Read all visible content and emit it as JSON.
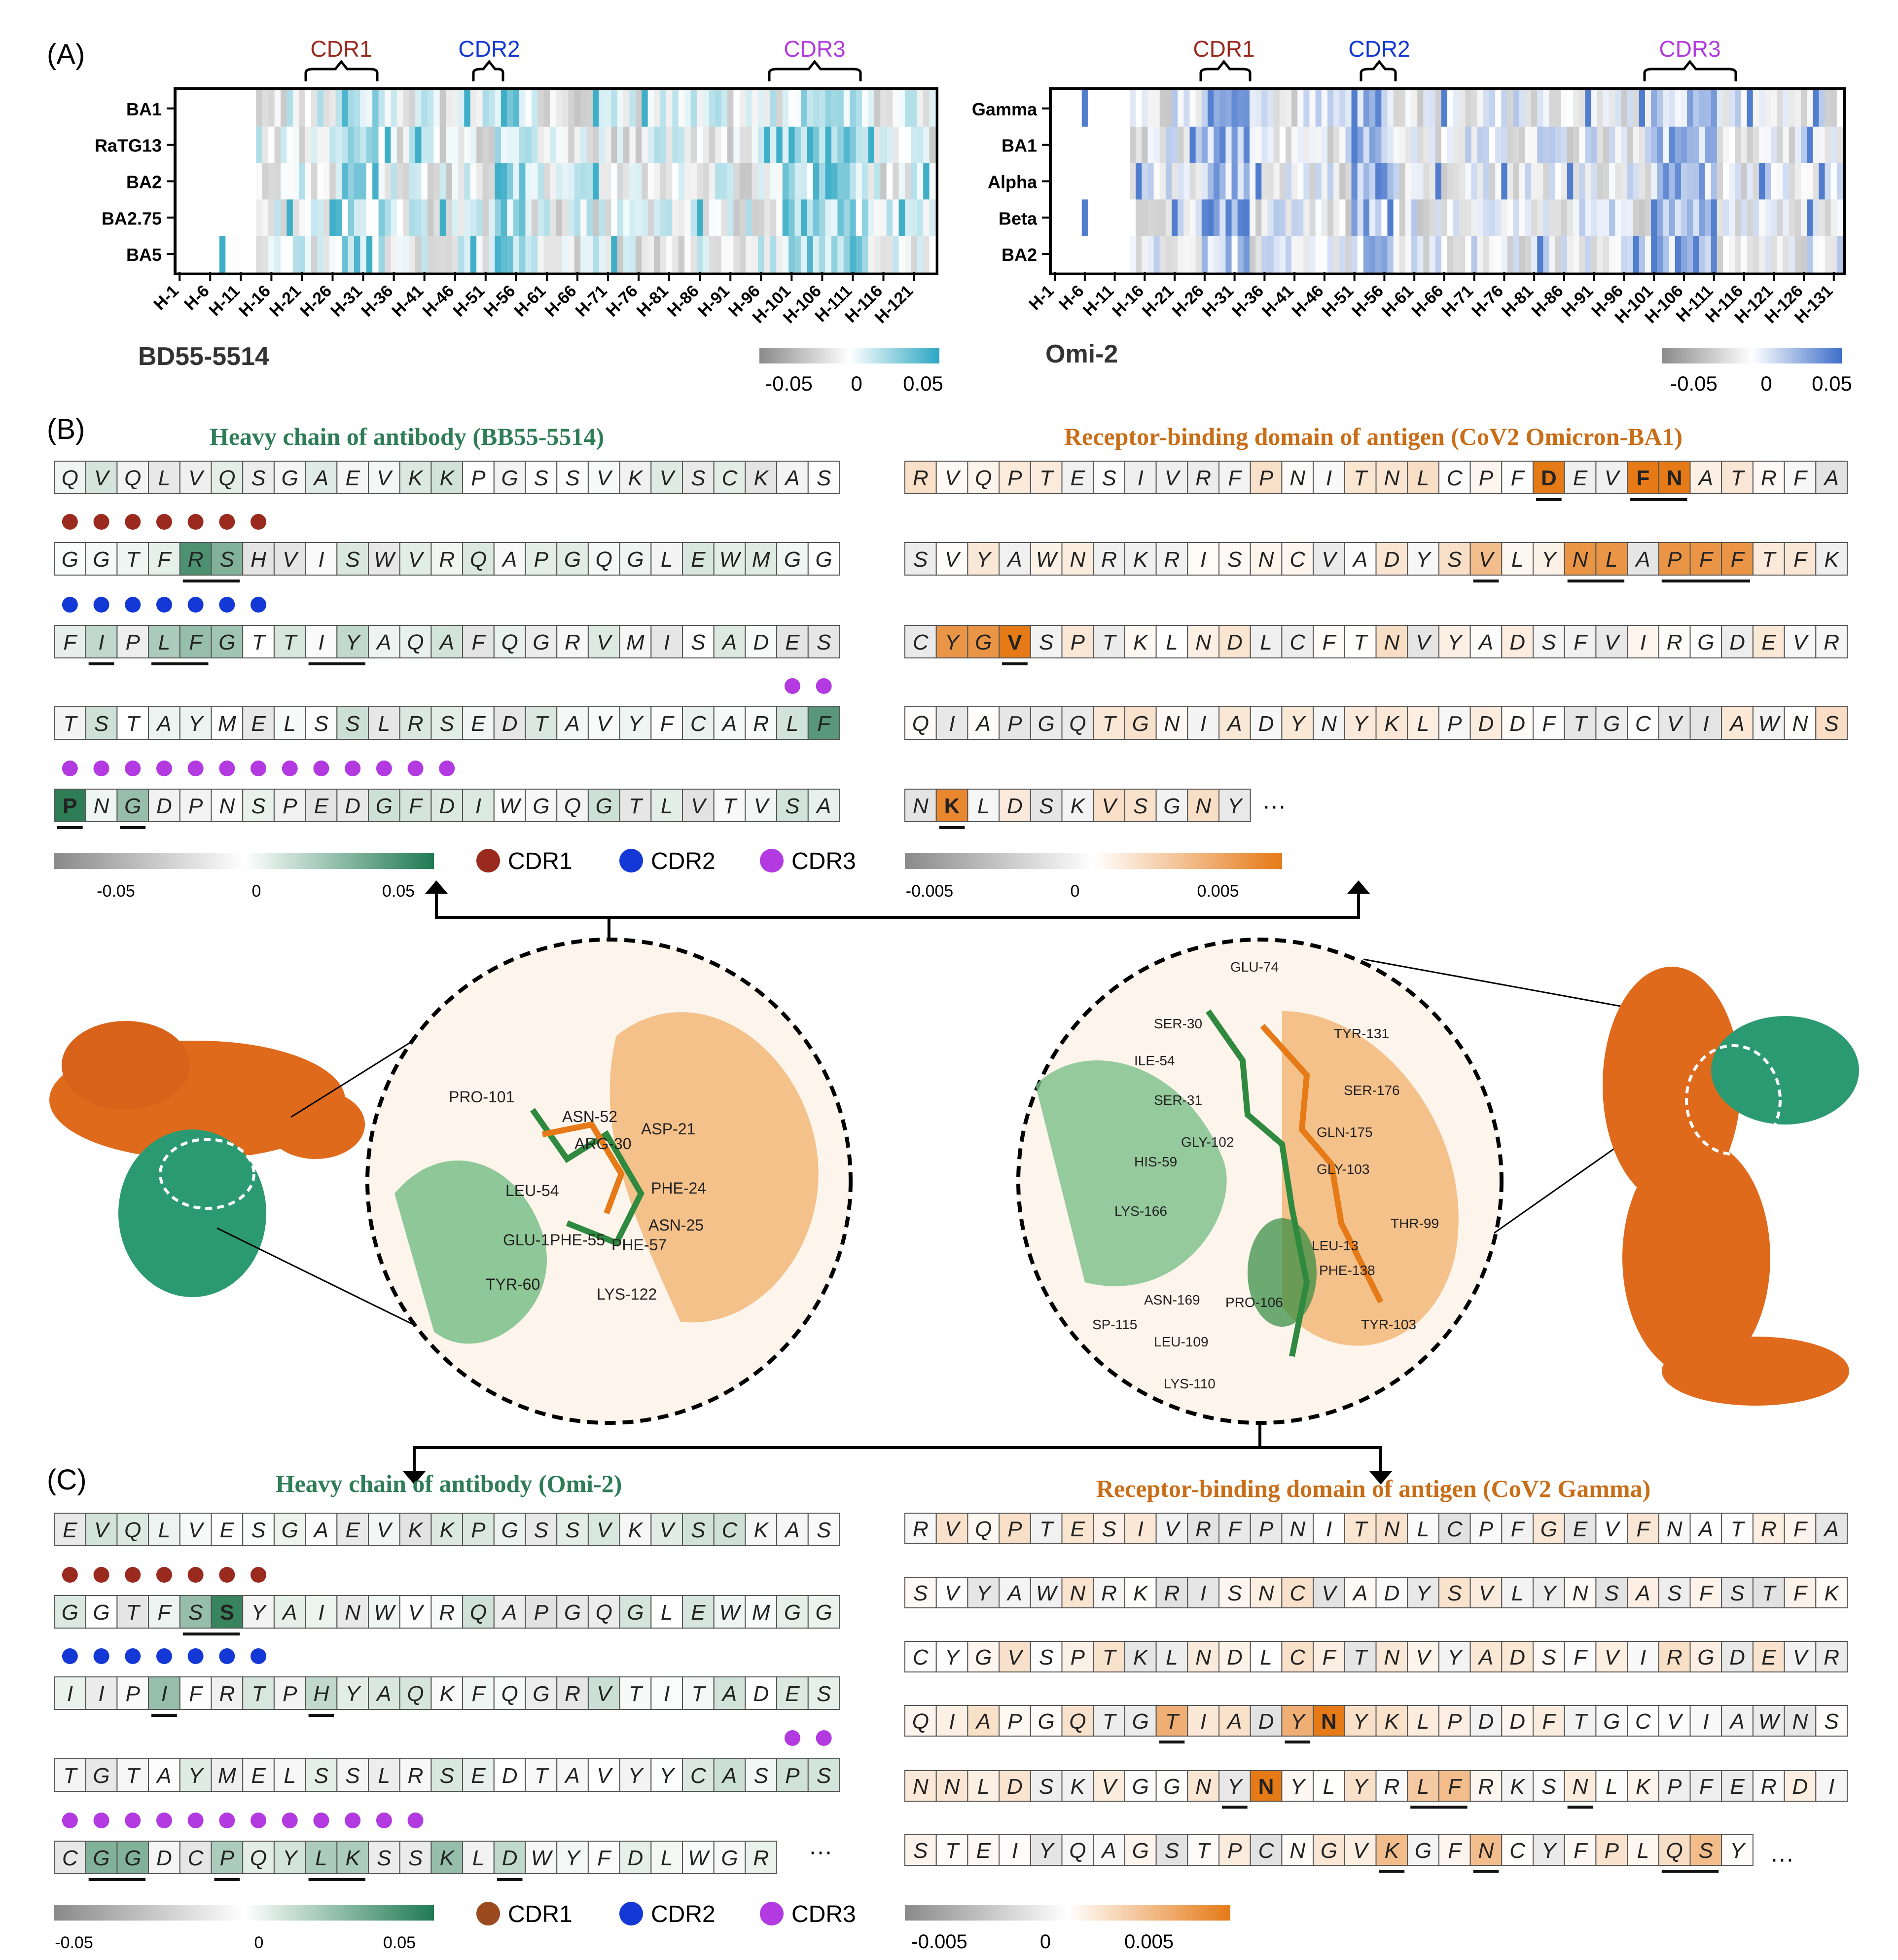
{
  "panels": {
    "A": "(A)",
    "B": "(B)",
    "C": "(C)"
  },
  "colors": {
    "teal": "#2aa6c2",
    "blue": "#3e6fc9",
    "green": "#2e7d57",
    "orange": "#e57a17",
    "gray": "#888888",
    "cdr1": "#9a2a1e",
    "cdr2": "#1338d6",
    "cdr3": "#b23ae0"
  },
  "panelA": {
    "left": {
      "antibody": "BD55-5514",
      "rows": [
        "BA1",
        "RaTG13",
        "BA2",
        "BA2.75",
        "BA5"
      ],
      "xticks": [
        "H-1",
        "H-6",
        "H-11",
        "H-16",
        "H-21",
        "H-26",
        "H-31",
        "H-36",
        "H-41",
        "H-46",
        "H-51",
        "H-56",
        "H-61",
        "H-66",
        "H-71",
        "H-76",
        "H-81",
        "H-86",
        "H-91",
        "H-96",
        "H-101",
        "H-106",
        "H-111",
        "H-116",
        "H-121"
      ],
      "cdr_labels": [
        "CDR1",
        "CDR2",
        "CDR3"
      ],
      "colorbar": [
        "-0.05",
        "0",
        "0.05"
      ],
      "n_cols": 124
    },
    "right": {
      "antibody": "Omi-2",
      "rows": [
        "Gamma",
        "BA1",
        "Alpha",
        "Beta",
        "BA2"
      ],
      "xticks": [
        "H-1",
        "H-6",
        "H-11",
        "H-16",
        "H-21",
        "H-26",
        "H-31",
        "H-36",
        "H-41",
        "H-46",
        "H-51",
        "H-56",
        "H-61",
        "H-66",
        "H-71",
        "H-76",
        "H-81",
        "H-86",
        "H-91",
        "H-96",
        "H-101",
        "H-106",
        "H-111",
        "H-116",
        "H-121",
        "H-126",
        "H-131"
      ],
      "cdr_labels": [
        "CDR1",
        "CDR2",
        "CDR3"
      ],
      "colorbar": [
        "-0.05",
        "0",
        "0.05"
      ],
      "n_cols": 132
    }
  },
  "panelB": {
    "antibody_title": "Heavy chain of antibody (BB55-5514)",
    "antigen_title": "Receptor-binding domain of antigen (CoV2 Omicron-BA1)",
    "antibody_rows": [
      "QVQLVQSGAEVKKPGSSVKVSCKAS",
      "GGTFRSHVISWVRQAPGQGLEWMGG",
      "FIPLFGTTIYAQAFQGRVMISADES",
      "TSTAYMELSSLRSEDTAVYFCARLF",
      "PNGDPNSPEDGFDIWGQGTLVTVSA"
    ],
    "antigen_rows": [
      "RVQPTESIVRFPNITNLCPFDEVFNATRFA",
      "SVYAWNRKRISNCVADYSVLYNLAPFFTFK",
      "CYGVSPTKLNDLCFTNVYADSFVIRGDEVR",
      "QIAPGQTGNIADYNYKLPDDFTGCVIAWNS",
      "NKLDSKVSGNY"
    ],
    "antigen_ellipsis": "···",
    "antibody_colorbar": [
      "-0.05",
      "0",
      "0.05"
    ],
    "antigen_colorbar": [
      "-0.005",
      "0",
      "0.005"
    ],
    "legend": [
      "CDR1",
      "CDR2",
      "CDR3"
    ]
  },
  "panelC": {
    "antibody_title": "Heavy chain of antibody (Omi-2)",
    "antigen_title": "Receptor-binding domain of antigen (CoV2 Gamma)",
    "antibody_rows": [
      "EVQLVESGAEVKKPGSSVKVSCKAS",
      "GGTFSSYAINWVRQAPGQGLEWMGG",
      "IIPIFRTPHYAQKFQGRVTITADES",
      "TGTAYMELSSLRSEDTAVYYCASPS",
      "CGGDCPQYLKSSKLDWYFDLWGR"
    ],
    "antibody_ellipsis": "···",
    "antigen_rows": [
      "RVQPTESIVRFPNITNLCPFGEVFNATRFA",
      "SVYAWNRKRISNCVADYSVLYNSASFSTFK",
      "CYGVSPTKLNDLCFTNVYADSFVIRGDEVR",
      "QIAPGQTGTIADYNYKLPDDFTGCVIAWNS",
      "NNLDSKVGGNYNYLYRLFRKSNLKPFERDI",
      "STEIYQAGSTPCNGVKGFNCYFPLQSY"
    ],
    "antigen_ellipsis": "···",
    "antibody_colorbar": [
      "-0.05",
      "0",
      "0.05"
    ],
    "antigen_colorbar": [
      "-0.005",
      "0",
      "0.005"
    ],
    "legend": [
      "CDR1",
      "CDR2",
      "CDR3"
    ]
  },
  "structure_left": {
    "labels": [
      "PRO-101",
      "ASN-52",
      "ARG-30",
      "ASP-21",
      "LEU-54",
      "PHE-24",
      "GLU-1",
      "PHE-55",
      "ASN-25",
      "PHE-57",
      "TYR-60",
      "LYS-122"
    ]
  },
  "structure_right": {
    "labels": [
      "GLU-74",
      "SER-30",
      "TYR-131",
      "ILE-54",
      "SER-31",
      "SER-176",
      "GLY-102",
      "GLN-175",
      "HIS-59",
      "GLY-103",
      "LYS-166",
      "THR-99",
      "LEU-13",
      "PHE-138",
      "ASN-169",
      "PRO-106",
      "SP-115",
      "LEU-109",
      "TYR-103",
      "LYS-110"
    ]
  }
}
